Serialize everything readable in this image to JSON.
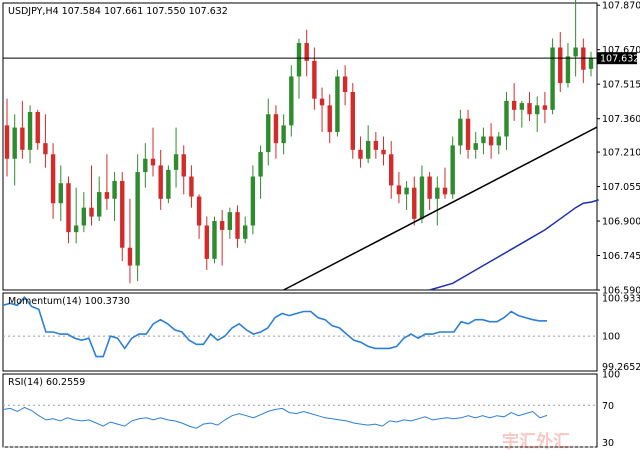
{
  "chart_data": [
    {
      "type": "candlestick",
      "title": "USDJPY,H4",
      "ohlc_header": [
        "107.584",
        "107.661",
        "107.550",
        "107.632"
      ],
      "last_price": "107.632",
      "ylim": [
        106.59,
        107.88
      ],
      "yticks": [
        "107.870",
        "107.670",
        "107.515",
        "107.360",
        "107.210",
        "107.055",
        "106.900",
        "106.745",
        "106.590"
      ],
      "colors": {
        "up": "#2e8b2e",
        "down": "#d42a2a",
        "trendline": "#000000",
        "moving_average": "#1f2fb0",
        "price_line": "#000000"
      },
      "candles": [
        [
          107.33,
          107.45,
          107.1,
          107.18
        ],
        [
          107.18,
          107.38,
          107.06,
          107.32
        ],
        [
          107.32,
          107.44,
          107.18,
          107.22
        ],
        [
          107.22,
          107.42,
          107.16,
          107.39
        ],
        [
          107.39,
          107.4,
          107.22,
          107.25
        ],
        [
          107.25,
          107.38,
          107.14,
          107.2
        ],
        [
          107.2,
          107.25,
          106.91,
          106.98
        ],
        [
          106.98,
          107.15,
          106.9,
          107.07
        ],
        [
          107.07,
          107.1,
          106.8,
          106.85
        ],
        [
          106.85,
          107.05,
          106.8,
          106.88
        ],
        [
          106.88,
          107.03,
          106.85,
          106.96
        ],
        [
          106.96,
          107.15,
          106.88,
          106.92
        ],
        [
          106.92,
          107.1,
          106.9,
          107.03
        ],
        [
          107.03,
          107.2,
          106.95,
          107.0
        ],
        [
          107.0,
          107.12,
          106.9,
          107.08
        ],
        [
          107.08,
          107.12,
          106.72,
          106.78
        ],
        [
          106.78,
          107.0,
          106.62,
          106.7
        ],
        [
          106.7,
          107.2,
          106.63,
          107.12
        ],
        [
          107.12,
          107.25,
          107.05,
          107.18
        ],
        [
          107.18,
          107.32,
          107.1,
          107.15
        ],
        [
          107.15,
          107.22,
          106.95,
          107.0
        ],
        [
          107.0,
          107.15,
          106.98,
          107.13
        ],
        [
          107.13,
          107.32,
          107.05,
          107.2
        ],
        [
          107.2,
          107.24,
          107.02,
          107.1
        ],
        [
          107.1,
          107.15,
          106.96,
          107.01
        ],
        [
          107.01,
          107.02,
          106.82,
          106.88
        ],
        [
          106.88,
          106.92,
          106.68,
          106.73
        ],
        [
          106.73,
          106.92,
          106.71,
          106.9
        ],
        [
          106.9,
          106.95,
          106.7,
          106.86
        ],
        [
          106.86,
          106.96,
          106.82,
          106.94
        ],
        [
          106.94,
          106.97,
          106.78,
          106.82
        ],
        [
          106.82,
          106.92,
          106.8,
          106.88
        ],
        [
          106.88,
          107.15,
          106.84,
          107.1
        ],
        [
          107.1,
          107.24,
          107.0,
          107.21
        ],
        [
          107.21,
          107.45,
          107.15,
          107.38
        ],
        [
          107.38,
          107.42,
          107.18,
          107.25
        ],
        [
          107.25,
          107.38,
          107.2,
          107.33
        ],
        [
          107.33,
          107.6,
          107.28,
          107.55
        ],
        [
          107.55,
          107.72,
          107.45,
          107.7
        ],
        [
          107.7,
          107.76,
          107.55,
          107.62
        ],
        [
          107.62,
          107.68,
          107.4,
          107.45
        ],
        [
          107.45,
          107.5,
          107.3,
          107.42
        ],
        [
          107.42,
          107.47,
          107.25,
          107.3
        ],
        [
          107.3,
          107.58,
          107.28,
          107.55
        ],
        [
          107.55,
          107.6,
          107.42,
          107.48
        ],
        [
          107.48,
          107.52,
          107.18,
          107.22
        ],
        [
          107.22,
          107.28,
          107.14,
          107.18
        ],
        [
          107.18,
          107.33,
          107.16,
          107.26
        ],
        [
          107.26,
          107.3,
          107.18,
          107.22
        ],
        [
          107.22,
          107.28,
          107.15,
          107.2
        ],
        [
          107.2,
          107.26,
          107.0,
          107.06
        ],
        [
          107.06,
          107.12,
          106.98,
          107.02
        ],
        [
          107.02,
          107.08,
          106.95,
          107.05
        ],
        [
          107.05,
          107.1,
          106.88,
          106.91
        ],
        [
          106.91,
          107.15,
          106.89,
          107.1
        ],
        [
          107.1,
          107.12,
          106.95,
          107.0
        ],
        [
          107.0,
          107.1,
          106.88,
          107.05
        ],
        [
          107.05,
          107.14,
          107.0,
          107.02
        ],
        [
          107.02,
          107.28,
          107.0,
          107.24
        ],
        [
          107.24,
          107.4,
          107.2,
          107.36
        ],
        [
          107.36,
          107.4,
          107.18,
          107.22
        ],
        [
          107.22,
          107.3,
          107.18,
          107.25
        ],
        [
          107.25,
          107.32,
          107.2,
          107.28
        ],
        [
          107.28,
          107.34,
          107.18,
          107.24
        ],
        [
          107.24,
          107.3,
          107.2,
          107.28
        ],
        [
          107.28,
          107.48,
          107.22,
          107.44
        ],
        [
          107.44,
          107.52,
          107.35,
          107.4
        ],
        [
          107.4,
          107.44,
          107.32,
          107.43
        ],
        [
          107.43,
          107.48,
          107.35,
          107.38
        ],
        [
          107.38,
          107.46,
          107.3,
          107.42
        ],
        [
          107.42,
          107.48,
          107.34,
          107.4
        ],
        [
          107.4,
          107.72,
          107.38,
          107.68
        ],
        [
          107.68,
          107.75,
          107.48,
          107.52
        ],
        [
          107.52,
          107.7,
          107.5,
          107.64
        ],
        [
          107.64,
          107.9,
          107.55,
          107.68
        ],
        [
          107.68,
          107.72,
          107.52,
          107.58
        ],
        [
          107.584,
          107.661,
          107.55,
          107.632
        ]
      ],
      "moving_average": [
        [
          55,
          106.59
        ],
        [
          58,
          106.62
        ],
        [
          60,
          106.66
        ],
        [
          62,
          106.7
        ],
        [
          64,
          106.74
        ],
        [
          66,
          106.78
        ],
        [
          68,
          106.82
        ],
        [
          70,
          106.86
        ],
        [
          72,
          106.91
        ],
        [
          74,
          106.96
        ],
        [
          75,
          106.98
        ],
        [
          76,
          106.985
        ],
        [
          77,
          106.995
        ]
      ],
      "trendline": [
        [
          36,
          106.59
        ],
        [
          80,
          107.38
        ]
      ]
    },
    {
      "type": "line",
      "title": "Momentum(14) 100.3730",
      "ylim": [
        99.15,
        101.05
      ],
      "yticks": [
        "100.9331",
        "100",
        "99.2652"
      ],
      "color": "#2b7fd9",
      "values": [
        100.75,
        100.8,
        100.75,
        100.95,
        100.72,
        100.65,
        100.1,
        100.1,
        100.05,
        100.05,
        99.95,
        99.9,
        99.95,
        99.5,
        99.5,
        100.0,
        99.95,
        99.7,
        99.95,
        100.05,
        100.05,
        100.3,
        100.4,
        100.3,
        100.15,
        100.1,
        99.9,
        99.8,
        99.8,
        100.05,
        99.9,
        100.0,
        100.2,
        100.3,
        100.15,
        100.05,
        100.1,
        100.2,
        100.45,
        100.55,
        100.5,
        100.55,
        100.6,
        100.6,
        100.45,
        100.4,
        100.25,
        100.2,
        100.05,
        99.9,
        99.85,
        99.75,
        99.7,
        99.7,
        99.7,
        99.75,
        99.95,
        100.05,
        99.95,
        100.05,
        100.05,
        100.1,
        100.1,
        100.1,
        100.35,
        100.3,
        100.4,
        100.4,
        100.35,
        100.35,
        100.45,
        100.6,
        100.5,
        100.45,
        100.4,
        100.37,
        100.373
      ]
    },
    {
      "type": "line",
      "title": "RSI(14) 60.2559",
      "ylim": [
        30,
        100
      ],
      "yticks": [
        "100",
        "70",
        "30"
      ],
      "color": "#2b7fd9",
      "values": [
        66,
        67,
        64,
        68,
        65,
        60,
        56,
        57,
        55,
        58,
        56,
        55,
        56,
        53,
        50,
        54,
        52,
        50,
        55,
        57,
        58,
        56,
        58,
        56,
        55,
        53,
        50,
        48,
        52,
        53,
        51,
        56,
        60,
        62,
        60,
        58,
        61,
        64,
        66,
        67,
        63,
        62,
        64,
        62,
        60,
        58,
        57,
        56,
        55,
        53,
        52,
        51,
        52,
        50,
        55,
        54,
        56,
        55,
        57,
        59,
        56,
        57,
        58,
        57,
        58,
        60,
        58,
        60,
        58,
        60,
        59,
        63,
        60,
        62,
        64,
        58,
        60.26
      ]
    }
  ],
  "watermark": "宇汇外汇"
}
